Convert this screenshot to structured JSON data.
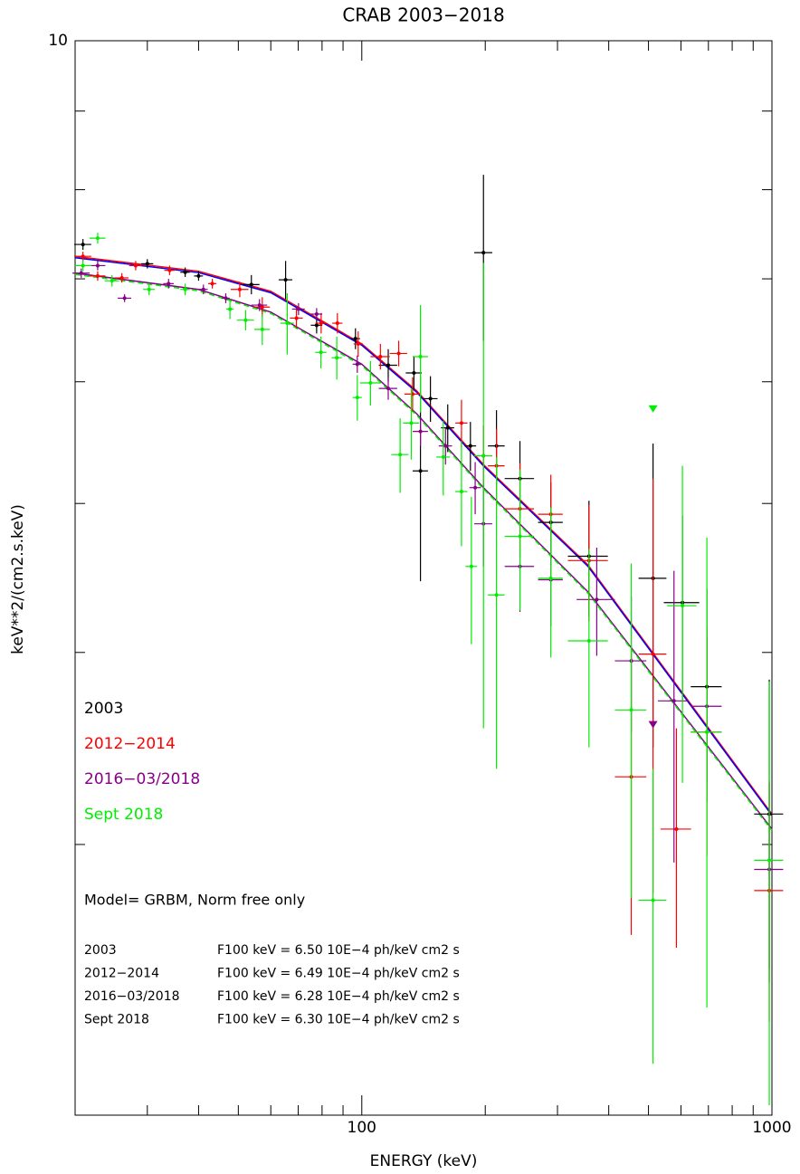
{
  "chart_data": {
    "type": "scatter",
    "title": "CRAB 2003−2018",
    "xlabel": "ENERGY (keV)",
    "ylabel": "keV**2/(cm2.s.keV)",
    "xscale": "log",
    "yscale": "log",
    "xlim": [
      20,
      1000
    ],
    "ylim": [
      2,
      10
    ],
    "xticks": [
      100,
      1000
    ],
    "yticks": [
      10
    ],
    "xminor_ticks": [
      30,
      40,
      50,
      60,
      70,
      80,
      90,
      200,
      300,
      400,
      500,
      600,
      700,
      800,
      900
    ],
    "yminor_ticks": [
      3,
      4,
      5,
      6,
      7,
      8,
      9
    ],
    "legend": "lower left",
    "series": [
      {
        "name": "2003",
        "color": "#000000",
        "x": [
          20.9,
          30.0,
          37.1,
          40.0,
          53.8,
          65.2,
          77.6,
          96.5,
          116,
          134,
          139,
          147,
          162,
          184,
          198,
          213,
          243,
          289,
          358,
          513,
          605,
          694,
          985
        ],
        "values": [
          7.37,
          7.16,
          7.07,
          7.03,
          6.94,
          6.99,
          6.53,
          6.4,
          6.15,
          6.08,
          5.25,
          5.85,
          5.6,
          5.45,
          7.28,
          5.45,
          5.19,
          4.86,
          4.62,
          4.47,
          4.31,
          3.8,
          3.14
        ],
        "xerr": [
          1,
          1,
          1,
          1,
          2.5,
          2.5,
          2.5,
          2.5,
          6,
          6,
          6,
          6,
          6,
          6,
          10,
          10,
          20,
          20,
          40,
          40,
          60,
          60,
          80
        ],
        "yerr": [
          0.06,
          0.05,
          0.05,
          0.05,
          0.1,
          0.2,
          0.08,
          0.1,
          0.15,
          0.15,
          0.8,
          0.2,
          0.2,
          0.2,
          0.9,
          0.3,
          0.3,
          0.3,
          0.4,
          1.0,
          0.6,
          0.6,
          0.7
        ]
      },
      {
        "name": "2012−2014",
        "color": "#ff0000",
        "x": [
          20.9,
          22.7,
          26.0,
          28.1,
          34.0,
          43.2,
          50.4,
          57.2,
          69.3,
          79.6,
          87.2,
          98.0,
          111,
          123,
          133,
          175,
          198,
          213,
          243,
          289,
          358,
          454,
          513,
          585,
          694,
          985
        ],
        "values": [
          7.24,
          7.03,
          7.01,
          7.14,
          7.09,
          6.95,
          6.89,
          6.71,
          6.6,
          6.55,
          6.55,
          6.35,
          6.23,
          6.26,
          5.89,
          5.64,
          5.37,
          5.29,
          4.96,
          4.92,
          4.59,
          3.32,
          3.99,
          3.07,
          3.55,
          2.8
        ],
        "xerr": [
          1,
          1,
          1,
          1,
          1,
          1,
          2.5,
          2.5,
          2.5,
          2.5,
          2.5,
          2.5,
          6,
          6,
          6,
          6,
          10,
          10,
          20,
          20,
          40,
          40,
          40,
          50,
          60,
          80
        ],
        "yerr": [
          0.05,
          0.05,
          0.05,
          0.05,
          0.05,
          0.05,
          0.08,
          0.1,
          0.1,
          0.1,
          0.1,
          0.12,
          0.12,
          0.12,
          0.15,
          0.2,
          0.25,
          0.3,
          0.35,
          0.3,
          0.4,
          0.7,
          1.2,
          0.5,
          0.6,
          0.5
        ]
      },
      {
        "name": "2016−03/2018",
        "color": "#880088",
        "x": [
          20.7,
          22.7,
          26.4,
          33.8,
          41.1,
          46.6,
          56.3,
          70.1,
          77.6,
          97.5,
          116,
          139,
          160,
          189,
          198,
          243,
          289,
          374,
          454,
          577,
          694,
          985
        ],
        "values": [
          7.06,
          7.14,
          6.8,
          6.95,
          6.89,
          6.8,
          6.73,
          6.69,
          6.64,
          6.16,
          5.94,
          5.57,
          5.45,
          5.12,
          4.85,
          4.55,
          4.46,
          4.33,
          3.95,
          3.72,
          3.69,
          2.89
        ],
        "xerr": [
          1,
          1,
          1,
          1,
          1,
          1,
          2.5,
          2.5,
          2.5,
          2.5,
          6,
          6,
          6,
          6,
          10,
          20,
          20,
          40,
          40,
          50,
          60,
          80
        ],
        "yerr": [
          0.05,
          0.05,
          0.04,
          0.05,
          0.05,
          0.05,
          0.06,
          0.06,
          0.06,
          0.08,
          0.1,
          0.12,
          0.15,
          0.2,
          0.3,
          0.3,
          0.3,
          0.35,
          0.4,
          0.8,
          0.4,
          0.4
        ],
        "upper_limits": {
          "x": [
            513
          ],
          "values": [
            3.57
          ]
        }
      },
      {
        "name": "Sept 2018",
        "color": "#00ee00",
        "x": [
          20.9,
          22.7,
          24.6,
          30.3,
          37.1,
          47.7,
          52.1,
          57.2,
          65.8,
          79.5,
          86.9,
          97.5,
          105,
          124,
          132,
          139,
          158,
          175,
          185,
          198,
          213,
          243,
          289,
          358,
          454,
          513,
          605,
          694,
          985
        ],
        "values": [
          7.14,
          7.44,
          6.98,
          6.89,
          6.89,
          6.69,
          6.58,
          6.49,
          6.55,
          6.27,
          6.22,
          5.86,
          5.99,
          5.38,
          5.64,
          6.23,
          5.36,
          5.09,
          4.55,
          5.37,
          4.36,
          4.76,
          4.47,
          4.07,
          3.67,
          2.76,
          4.29,
          3.55,
          2.93
        ],
        "xerr": [
          1,
          1,
          1,
          1,
          1,
          1,
          2.5,
          2.5,
          2.5,
          2.5,
          2.5,
          2.5,
          6,
          6,
          6,
          6,
          6,
          6,
          6,
          10,
          10,
          20,
          20,
          40,
          40,
          40,
          50,
          60,
          80
        ],
        "yerr": [
          0.06,
          0.06,
          0.06,
          0.06,
          0.06,
          0.1,
          0.1,
          0.15,
          0.3,
          0.15,
          0.2,
          0.2,
          0.2,
          0.3,
          0.3,
          0.5,
          0.3,
          0.4,
          0.5,
          1.8,
          1.0,
          0.5,
          0.5,
          0.6,
          0.9,
          0.6,
          1.0,
          1.2,
          0.9
        ],
        "upper_limits": {
          "x": [
            513
          ],
          "values": [
            5.73
          ]
        }
      }
    ],
    "models": [
      {
        "colors": [
          "#ff0000",
          "#0000ff"
        ],
        "x": [
          20,
          40,
          60,
          100,
          136,
          198,
          356,
          1000
        ],
        "values": [
          7.24,
          7.08,
          6.87,
          6.35,
          5.92,
          5.3,
          4.56,
          3.14
        ]
      },
      {
        "colors": [
          "#880088",
          "#00ee00"
        ],
        "x": [
          20,
          40,
          60,
          100,
          136,
          198,
          356,
          1000
        ],
        "values": [
          7.06,
          6.89,
          6.66,
          6.16,
          5.72,
          5.12,
          4.38,
          3.07
        ],
        "dashed": true
      }
    ],
    "annotations": {
      "model": "Model= GRBM, Norm free only",
      "rows": [
        [
          "2003",
          "F100 keV = 6.50 10E−4 ph/keV cm2 s"
        ],
        [
          "2012−2014",
          "F100 keV = 6.49 10E−4 ph/keV cm2 s"
        ],
        [
          "2016−03/2018",
          "F100 keV = 6.28 10E−4 ph/keV cm2 s"
        ],
        [
          "Sept 2018",
          "F100 keV = 6.30 10E−4 ph/keV cm2 s"
        ]
      ]
    }
  }
}
